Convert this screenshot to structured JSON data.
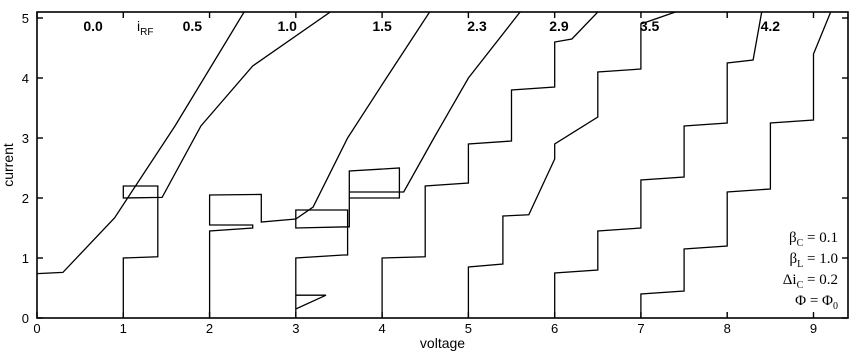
{
  "chart_data": {
    "type": "line",
    "title": "",
    "xlabel": "voltage",
    "ylabel": "current",
    "xlim": [
      0,
      9.4
    ],
    "ylim": [
      0,
      5.1
    ],
    "x_ticks": [
      0,
      1,
      2,
      3,
      4,
      5,
      6,
      7,
      8,
      9
    ],
    "y_ticks": [
      0,
      1,
      2,
      3,
      4,
      5
    ],
    "grid": false,
    "legend_header": "i",
    "legend_header_sub": "RF",
    "parameters": [
      {
        "sym": "β",
        "sub": "C",
        "text": " = 0.1"
      },
      {
        "sym": "β",
        "sub": "L",
        "text": " = 1.0"
      },
      {
        "sym": "Δi",
        "sub": "C",
        "text": " = 0.2"
      },
      {
        "sym": "Φ",
        "sub": "",
        "text": " = Φ",
        "tail_sub": "0"
      }
    ],
    "series": [
      {
        "name": "0.0",
        "label_x": 0.65,
        "x": [
          0.0,
          0.3,
          0.9,
          1.6,
          2.4
        ],
        "y": [
          0.74,
          0.76,
          1.67,
          3.2,
          5.1
        ]
      },
      {
        "name": "0.5",
        "label_x": 1.8,
        "x": [
          1.0,
          1.0,
          1.4,
          1.4,
          1.0,
          1.0,
          1.45,
          1.9,
          2.5,
          3.4
        ],
        "y": [
          0.0,
          1.0,
          1.02,
          2.2,
          2.2,
          2.0,
          2.01,
          3.2,
          4.2,
          5.1
        ]
      },
      {
        "name": "1.0",
        "label_x": 2.9,
        "x": [
          2.0,
          2.0,
          2.5,
          2.5,
          2.0,
          2.0,
          2.6,
          2.6,
          3.0,
          3.2,
          3.6,
          4.05,
          4.55
        ],
        "y": [
          0.0,
          1.45,
          1.5,
          1.55,
          1.55,
          2.05,
          2.06,
          1.6,
          1.65,
          1.85,
          3.0,
          4.0,
          5.1
        ]
      },
      {
        "name": "1.5",
        "label_x": 4.0,
        "x": [
          3.0,
          3.0,
          3.35,
          3.0,
          3.0,
          3.55,
          3.6,
          3.6,
          3.0,
          3.0,
          3.6,
          3.62,
          3.62,
          4.2,
          4.2,
          3.62,
          3.62,
          4.25,
          4.6,
          5.0,
          5.6
        ],
        "y": [
          0.0,
          0.38,
          0.38,
          0.15,
          1.0,
          1.05,
          1.05,
          1.8,
          1.8,
          1.5,
          1.52,
          1.52,
          2.45,
          2.5,
          2.0,
          2.0,
          2.1,
          2.1,
          3.0,
          4.0,
          5.1
        ]
      },
      {
        "name": "2.3",
        "label_x": 5.1,
        "x": [
          4.0,
          4.0,
          4.5,
          4.5,
          5.0,
          5.0,
          5.5,
          5.5,
          6.0,
          6.0,
          6.2,
          6.5
        ],
        "y": [
          0.0,
          1.0,
          1.02,
          2.2,
          2.25,
          2.9,
          2.95,
          3.8,
          3.85,
          4.6,
          4.65,
          5.1
        ]
      },
      {
        "name": "2.9",
        "label_x": 6.05,
        "x": [
          5.0,
          5.0,
          5.4,
          5.4,
          5.7,
          6.0,
          6.0,
          6.5,
          6.5,
          7.0,
          7.0,
          7.4
        ],
        "y": [
          0.0,
          0.85,
          0.9,
          1.7,
          1.72,
          2.65,
          2.9,
          3.35,
          4.1,
          4.15,
          4.9,
          5.1
        ]
      },
      {
        "name": "3.5",
        "label_x": 7.1,
        "x": [
          6.0,
          6.0,
          6.5,
          6.5,
          7.0,
          7.0,
          7.5,
          7.5,
          8.0,
          8.0,
          8.3,
          8.4
        ],
        "y": [
          0.0,
          0.75,
          0.8,
          1.45,
          1.5,
          2.3,
          2.35,
          3.2,
          3.25,
          4.25,
          4.3,
          5.1
        ]
      },
      {
        "name": "4.2",
        "label_x": 8.5,
        "x": [
          7.0,
          7.0,
          7.5,
          7.5,
          8.0,
          8.0,
          8.5,
          8.5,
          9.0,
          9.0,
          9.2
        ],
        "y": [
          0.0,
          0.4,
          0.45,
          1.15,
          1.2,
          2.1,
          2.15,
          3.25,
          3.3,
          4.4,
          5.1
        ]
      }
    ]
  }
}
